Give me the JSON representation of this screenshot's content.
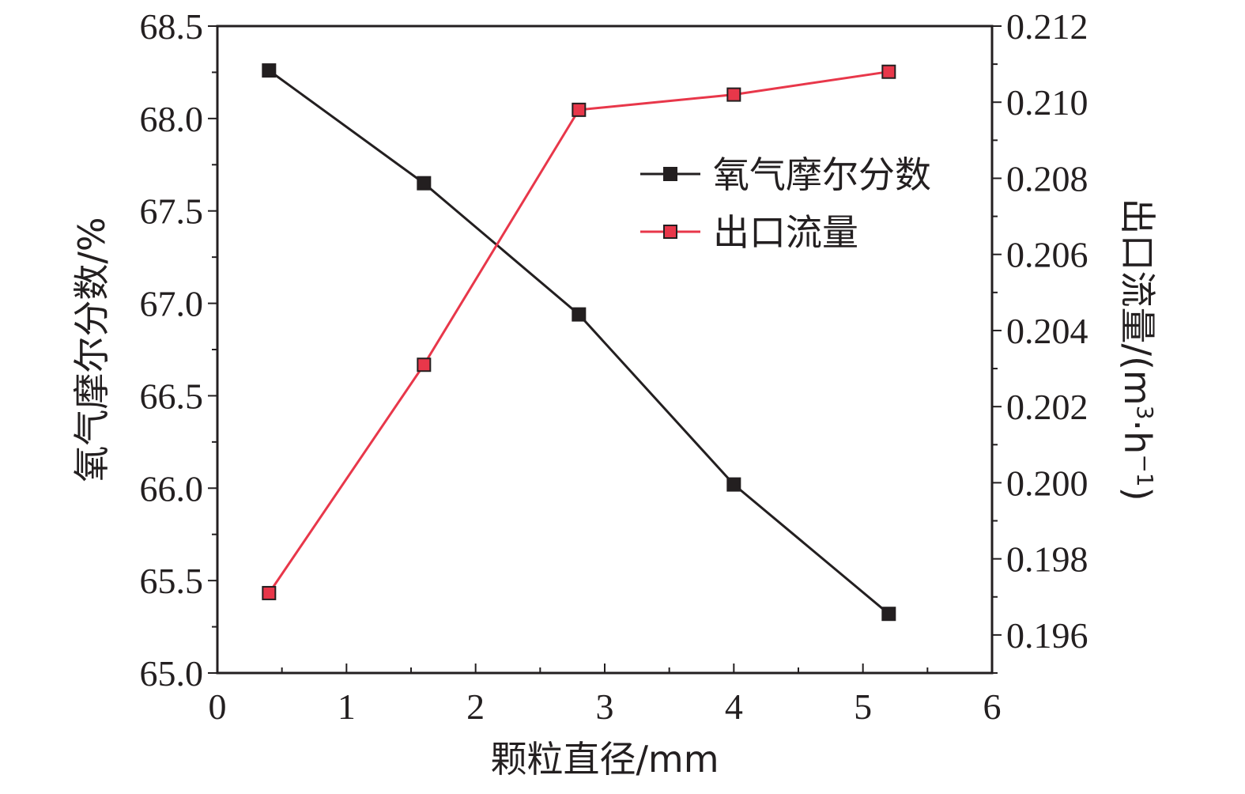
{
  "chart_data": {
    "type": "line",
    "title": "",
    "xlabel": "颗粒直径/mm",
    "ylabel_left": "氧气摩尔分数/%",
    "ylabel_right_text": "出口流量/(m",
    "ylabel_right_sup1": "3",
    "ylabel_right_mid": "·h",
    "ylabel_right_sup2": "−1",
    "ylabel_right_close": ")",
    "xlim": [
      0,
      6
    ],
    "ylim_left": [
      65.0,
      68.5
    ],
    "ylim_right": [
      0.195,
      0.212
    ],
    "x_ticks": [
      "0",
      "1",
      "2",
      "3",
      "4",
      "5",
      "6"
    ],
    "y_left_ticks": [
      "65.0",
      "65.5",
      "66.0",
      "66.5",
      "67.0",
      "67.5",
      "68.0",
      "68.5"
    ],
    "y_right_ticks": [
      "0.196",
      "0.198",
      "0.200",
      "0.202",
      "0.204",
      "0.206",
      "0.208",
      "0.210",
      "0.212"
    ],
    "x": [
      0.4,
      1.6,
      2.8,
      4.0,
      5.2
    ],
    "series": [
      {
        "name": "氧气摩尔分数",
        "axis": "left",
        "color": "#231f20",
        "values": [
          68.26,
          67.65,
          66.94,
          66.02,
          65.32
        ]
      },
      {
        "name": "出口流量",
        "axis": "right",
        "color": "#e8374a",
        "values": [
          0.1971,
          0.2031,
          0.2098,
          0.2102,
          0.2108
        ]
      }
    ],
    "legend_position": "upper-right",
    "grid": false
  }
}
